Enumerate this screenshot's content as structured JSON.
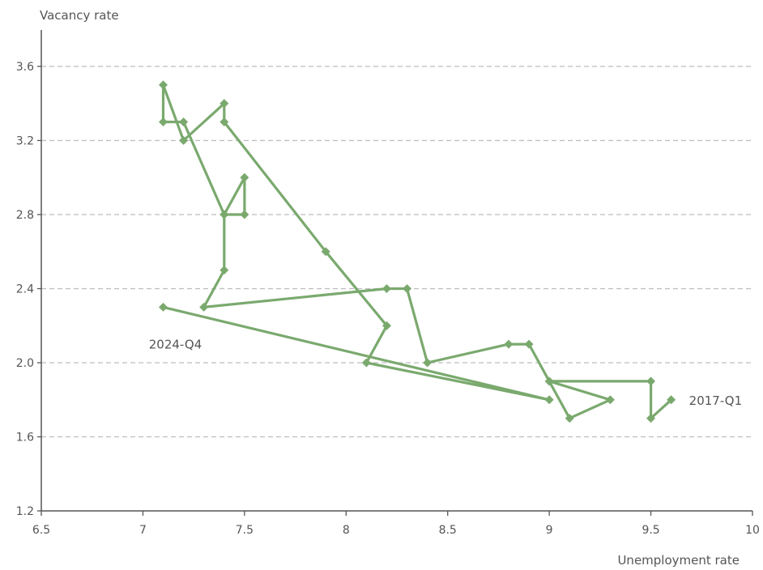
{
  "chart_data": {
    "type": "line",
    "xlabel": "Unemployment rate",
    "ylabel": "Vacancy rate",
    "xlim": [
      6.5,
      10
    ],
    "ylim": [
      1.2,
      3.8
    ],
    "x_ticks": [
      6.5,
      7,
      7.5,
      8,
      8.5,
      9,
      9.5,
      10
    ],
    "x_tick_labels": [
      "6.5",
      "7",
      "7.5",
      "8",
      "8.5",
      "9",
      "9.5",
      "10"
    ],
    "y_ticks": [
      1.2,
      1.6,
      2.0,
      2.4,
      2.8,
      3.2,
      3.6
    ],
    "y_tick_labels": [
      "1.2",
      "1.6",
      "2.0",
      "2.4",
      "2.8",
      "3.2",
      "3.6"
    ],
    "grid": "horizontal-dashed",
    "marker": "diamond",
    "color": "#7aa96e",
    "series": [
      {
        "points": [
          {
            "x": 9.6,
            "y": 1.8
          },
          {
            "x": 9.5,
            "y": 1.7
          },
          {
            "x": 9.5,
            "y": 1.9
          },
          {
            "x": 9.0,
            "y": 1.9
          },
          {
            "x": 9.1,
            "y": 1.7
          },
          {
            "x": 9.3,
            "y": 1.8
          },
          {
            "x": 9.0,
            "y": 1.9
          },
          {
            "x": 8.9,
            "y": 2.1
          },
          {
            "x": 8.8,
            "y": 2.1
          },
          {
            "x": 8.4,
            "y": 2.0
          },
          {
            "x": 8.3,
            "y": 2.4
          },
          {
            "x": 8.2,
            "y": 2.4
          },
          {
            "x": 7.3,
            "y": 2.3
          },
          {
            "x": 7.4,
            "y": 2.5
          },
          {
            "x": 7.4,
            "y": 2.8
          },
          {
            "x": 7.5,
            "y": 2.8
          },
          {
            "x": 7.5,
            "y": 3.0
          },
          {
            "x": 7.4,
            "y": 2.8
          },
          {
            "x": 7.2,
            "y": 3.3
          },
          {
            "x": 7.1,
            "y": 3.3
          },
          {
            "x": 7.1,
            "y": 3.5
          },
          {
            "x": 7.2,
            "y": 3.2
          },
          {
            "x": 7.4,
            "y": 3.4
          },
          {
            "x": 7.4,
            "y": 3.3
          },
          {
            "x": 7.9,
            "y": 2.6
          },
          {
            "x": 8.2,
            "y": 2.2
          },
          {
            "x": 8.1,
            "y": 2.0
          },
          {
            "x": 9.0,
            "y": 1.8
          },
          {
            "x": 7.1,
            "y": 2.3
          }
        ]
      }
    ],
    "annotations": [
      {
        "text": "2017-Q1",
        "x": 9.6,
        "y": 1.8
      },
      {
        "text": "2024-Q4",
        "x": 7.1,
        "y": 2.3
      }
    ]
  }
}
